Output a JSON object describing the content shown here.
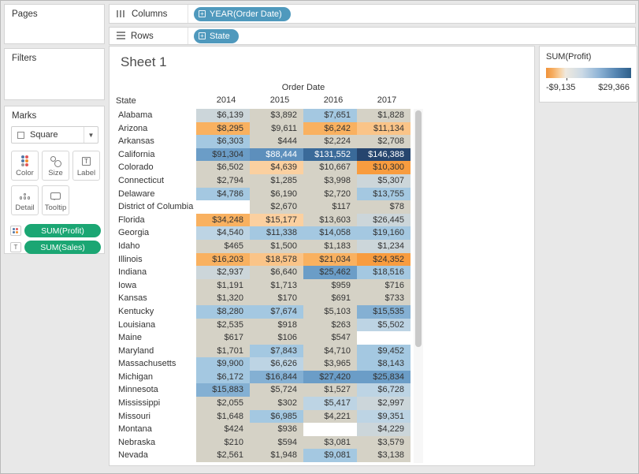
{
  "cards": {
    "pages": {
      "label": "Pages"
    },
    "filters": {
      "label": "Filters"
    },
    "marks": {
      "title": "Marks",
      "mark_type": "Square",
      "buttons": [
        "Color",
        "Size",
        "Label",
        "Detail",
        "Tooltip"
      ],
      "pills": [
        {
          "icon": "color-dots",
          "label": "SUM(Profit)"
        },
        {
          "icon": "text",
          "label": "SUM(Sales)"
        }
      ]
    }
  },
  "shelves": {
    "columns": {
      "label": "Columns",
      "pill": "YEAR(Order Date)"
    },
    "rows": {
      "label": "Rows",
      "pill": "State"
    }
  },
  "sheet": {
    "title": "Sheet 1"
  },
  "legend": {
    "title": "SUM(Profit)",
    "min_label": "-$9,135",
    "max_label": "$29,366",
    "gradient_stops": [
      [
        "#f0923a",
        0
      ],
      [
        "#f6ad60",
        8
      ],
      [
        "#f8cf9e",
        16
      ],
      [
        "#efe9de",
        23
      ],
      [
        "#ccdae6",
        42
      ],
      [
        "#8fb4d6",
        62
      ],
      [
        "#5585b2",
        82
      ],
      [
        "#2e5f8a",
        100
      ]
    ],
    "zero_tick_percent": 24
  },
  "chart_data": {
    "type": "heatmap",
    "title": "Sheet 1",
    "column_field": "Order Date",
    "row_field": "State",
    "columns": [
      "2014",
      "2015",
      "2016",
      "2017"
    ],
    "values_displayed_metric": "SUM(Sales)",
    "color_metric": "SUM(Profit)",
    "color_domain": [
      -9135,
      29366
    ],
    "palette": {
      "W": "#ffffff",
      "G": "#d5d2c6",
      "BG": "#ccd6da",
      "B1": "#bdd4e4",
      "B2": "#a4c8e1",
      "B3": "#84b0d3",
      "B4": "#6b9dc7",
      "B5": "#5d8fbc",
      "B6": "#3a6a99",
      "B7": "#26456e",
      "O1": "#fbd0a0",
      "O2": "#fac488",
      "O3": "#f9b160",
      "O4": "#f89c3f"
    },
    "white_text_keys": [
      "B5",
      "B6",
      "B7"
    ],
    "rows": [
      {
        "state": "Alabama",
        "values": [
          "$6,139",
          "$3,892",
          "$7,651",
          "$1,828"
        ],
        "colors": [
          "BG",
          "G",
          "B2",
          "G"
        ]
      },
      {
        "state": "Arizona",
        "values": [
          "$8,295",
          "$9,611",
          "$6,242",
          "$11,134"
        ],
        "colors": [
          "O3",
          "G",
          "O3",
          "O2"
        ]
      },
      {
        "state": "Arkansas",
        "values": [
          "$6,303",
          "$444",
          "$2,224",
          "$2,708"
        ],
        "colors": [
          "B2",
          "G",
          "G",
          "G"
        ]
      },
      {
        "state": "California",
        "values": [
          "$91,304",
          "$88,444",
          "$131,552",
          "$146,388"
        ],
        "colors": [
          "B4",
          "B5",
          "B6",
          "B7"
        ]
      },
      {
        "state": "Colorado",
        "values": [
          "$6,502",
          "$4,639",
          "$10,667",
          "$10,300"
        ],
        "colors": [
          "G",
          "O1",
          "G",
          "O4"
        ]
      },
      {
        "state": "Connecticut",
        "values": [
          "$2,794",
          "$1,285",
          "$3,998",
          "$5,307"
        ],
        "colors": [
          "G",
          "G",
          "G",
          "BG"
        ]
      },
      {
        "state": "Delaware",
        "values": [
          "$4,786",
          "$6,190",
          "$2,720",
          "$13,755"
        ],
        "colors": [
          "B2",
          "G",
          "G",
          "B2"
        ]
      },
      {
        "state": "District of Columbia",
        "values": [
          "",
          "$2,670",
          "$117",
          "$78"
        ],
        "colors": [
          "W",
          "G",
          "G",
          "G"
        ]
      },
      {
        "state": "Florida",
        "values": [
          "$34,248",
          "$15,177",
          "$13,603",
          "$26,445"
        ],
        "colors": [
          "O3",
          "O1",
          "G",
          "BG"
        ]
      },
      {
        "state": "Georgia",
        "values": [
          "$4,540",
          "$11,338",
          "$14,058",
          "$19,160"
        ],
        "colors": [
          "B1",
          "B2",
          "B2",
          "B2"
        ]
      },
      {
        "state": "Idaho",
        "values": [
          "$465",
          "$1,500",
          "$1,183",
          "$1,234"
        ],
        "colors": [
          "G",
          "G",
          "G",
          "BG"
        ]
      },
      {
        "state": "Illinois",
        "values": [
          "$16,203",
          "$18,578",
          "$21,034",
          "$24,352"
        ],
        "colors": [
          "O3",
          "O2",
          "O3",
          "O4"
        ]
      },
      {
        "state": "Indiana",
        "values": [
          "$2,937",
          "$6,640",
          "$25,462",
          "$18,516"
        ],
        "colors": [
          "BG",
          "G",
          "B4",
          "B2"
        ]
      },
      {
        "state": "Iowa",
        "values": [
          "$1,191",
          "$1,713",
          "$959",
          "$716"
        ],
        "colors": [
          "G",
          "G",
          "G",
          "G"
        ]
      },
      {
        "state": "Kansas",
        "values": [
          "$1,320",
          "$170",
          "$691",
          "$733"
        ],
        "colors": [
          "G",
          "G",
          "G",
          "G"
        ]
      },
      {
        "state": "Kentucky",
        "values": [
          "$8,280",
          "$7,674",
          "$5,103",
          "$15,535"
        ],
        "colors": [
          "B2",
          "B2",
          "G",
          "B3"
        ]
      },
      {
        "state": "Louisiana",
        "values": [
          "$2,535",
          "$918",
          "$263",
          "$5,502"
        ],
        "colors": [
          "G",
          "G",
          "G",
          "B1"
        ]
      },
      {
        "state": "Maine",
        "values": [
          "$617",
          "$106",
          "$547",
          ""
        ],
        "colors": [
          "G",
          "G",
          "G",
          "W"
        ]
      },
      {
        "state": "Maryland",
        "values": [
          "$1,701",
          "$7,843",
          "$4,710",
          "$9,452"
        ],
        "colors": [
          "G",
          "B2",
          "G",
          "B2"
        ]
      },
      {
        "state": "Massachusetts",
        "values": [
          "$9,900",
          "$6,626",
          "$3,965",
          "$8,143"
        ],
        "colors": [
          "B2",
          "B1",
          "G",
          "B2"
        ]
      },
      {
        "state": "Michigan",
        "values": [
          "$6,172",
          "$16,844",
          "$27,420",
          "$25,834"
        ],
        "colors": [
          "B2",
          "B3",
          "B4",
          "B4"
        ]
      },
      {
        "state": "Minnesota",
        "values": [
          "$15,883",
          "$5,724",
          "$1,527",
          "$6,728"
        ],
        "colors": [
          "B3",
          "G",
          "G",
          "B1"
        ]
      },
      {
        "state": "Mississippi",
        "values": [
          "$2,055",
          "$302",
          "$5,417",
          "$2,997"
        ],
        "colors": [
          "G",
          "G",
          "B1",
          "BG"
        ]
      },
      {
        "state": "Missouri",
        "values": [
          "$1,648",
          "$6,985",
          "$4,221",
          "$9,351"
        ],
        "colors": [
          "G",
          "B2",
          "G",
          "B1"
        ]
      },
      {
        "state": "Montana",
        "values": [
          "$424",
          "$936",
          "",
          "$4,229"
        ],
        "colors": [
          "G",
          "G",
          "W",
          "BG"
        ]
      },
      {
        "state": "Nebraska",
        "values": [
          "$210",
          "$594",
          "$3,081",
          "$3,579"
        ],
        "colors": [
          "G",
          "G",
          "G",
          "G"
        ]
      },
      {
        "state": "Nevada",
        "values": [
          "$2,561",
          "$1,948",
          "$9,081",
          "$3,138"
        ],
        "colors": [
          "G",
          "G",
          "B2",
          "G"
        ]
      }
    ]
  }
}
